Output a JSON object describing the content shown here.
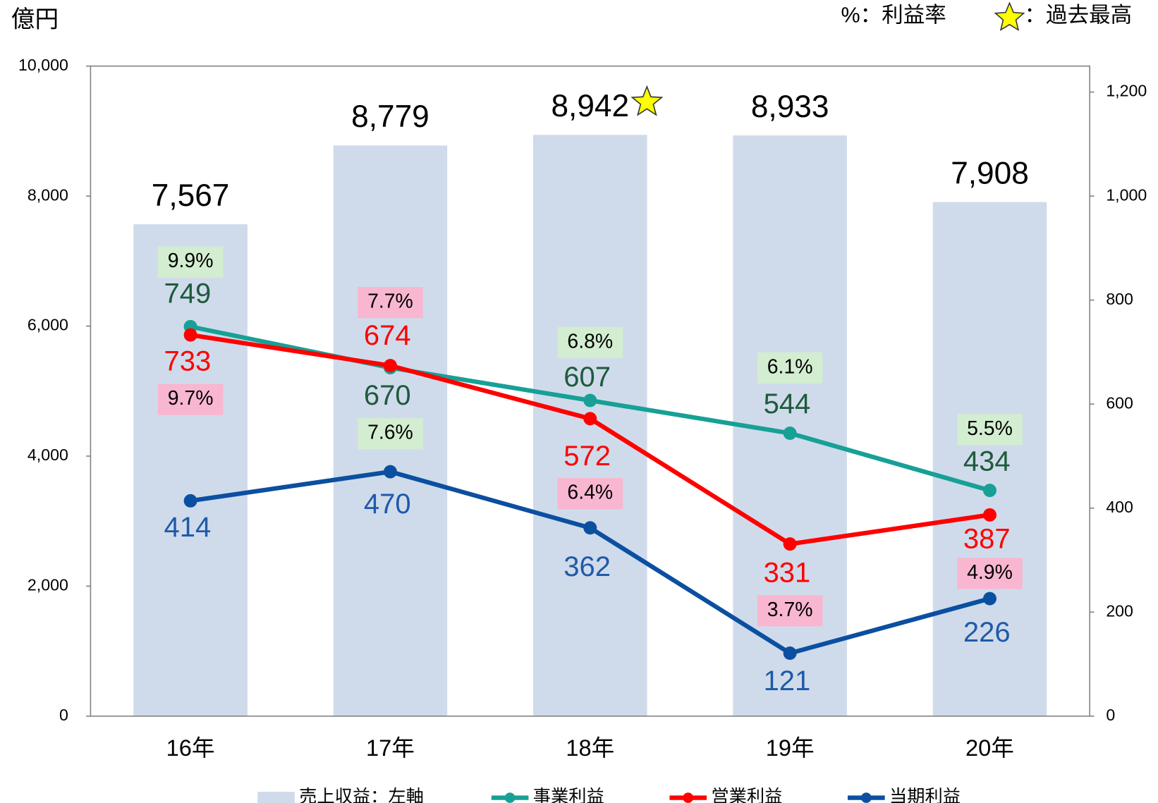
{
  "chart_data": {
    "type": "bar",
    "unit_label": "億円",
    "note_rate": "%：利益率",
    "note_record": "：過去最高",
    "categories": [
      "16年",
      "17年",
      "18年",
      "19年",
      "20年"
    ],
    "ylim": [
      0,
      10000
    ],
    "yticks": [
      0,
      {
        "value": 2000,
        "label": "2,000"
      },
      {
        "value": 4000,
        "label": "4,000"
      },
      {
        "value": 6000,
        "label": "6,000"
      },
      {
        "value": 8000,
        "label": "8,000"
      },
      {
        "value": 10000,
        "label": "10,000"
      }
    ],
    "y2lim": [
      0,
      1250
    ],
    "y2ticks": [
      0,
      200,
      400,
      600,
      800,
      {
        "value": 1000,
        "label": "1,000"
      },
      {
        "value": 1200,
        "label": "1,200"
      }
    ],
    "series": [
      {
        "name": "売上収益：左軸",
        "type": "bar",
        "color": "#cfdbeb",
        "values": [
          7567,
          8779,
          8942,
          8933,
          7908
        ],
        "value_labels": [
          "7,567",
          "8,779",
          "8,942",
          "8,933",
          "7,908"
        ]
      },
      {
        "name": "事業利益",
        "type": "line",
        "axis": "y2",
        "color": "#17a096",
        "label_color": "#1e5b3c",
        "rate_color": "#d3edd0",
        "values": [
          749,
          670,
          607,
          544,
          434
        ],
        "rate_labels": [
          "9.9%",
          "7.6%",
          "6.8%",
          "6.1%",
          "5.5%"
        ]
      },
      {
        "name": "営業利益",
        "type": "line",
        "axis": "y2",
        "color": "#ff0000",
        "label_color": "#ff0000",
        "rate_color": "#f9b6d0",
        "values": [
          733,
          674,
          572,
          331,
          387
        ],
        "rate_labels": [
          "9.7%",
          "7.7%",
          "6.4%",
          "3.7%",
          "4.9%"
        ]
      },
      {
        "name": "当期利益",
        "type": "line",
        "axis": "y2",
        "color": "#0b4fa0",
        "label_color": "#1f5aa8",
        "values": [
          414,
          470,
          362,
          121,
          226
        ]
      }
    ]
  }
}
